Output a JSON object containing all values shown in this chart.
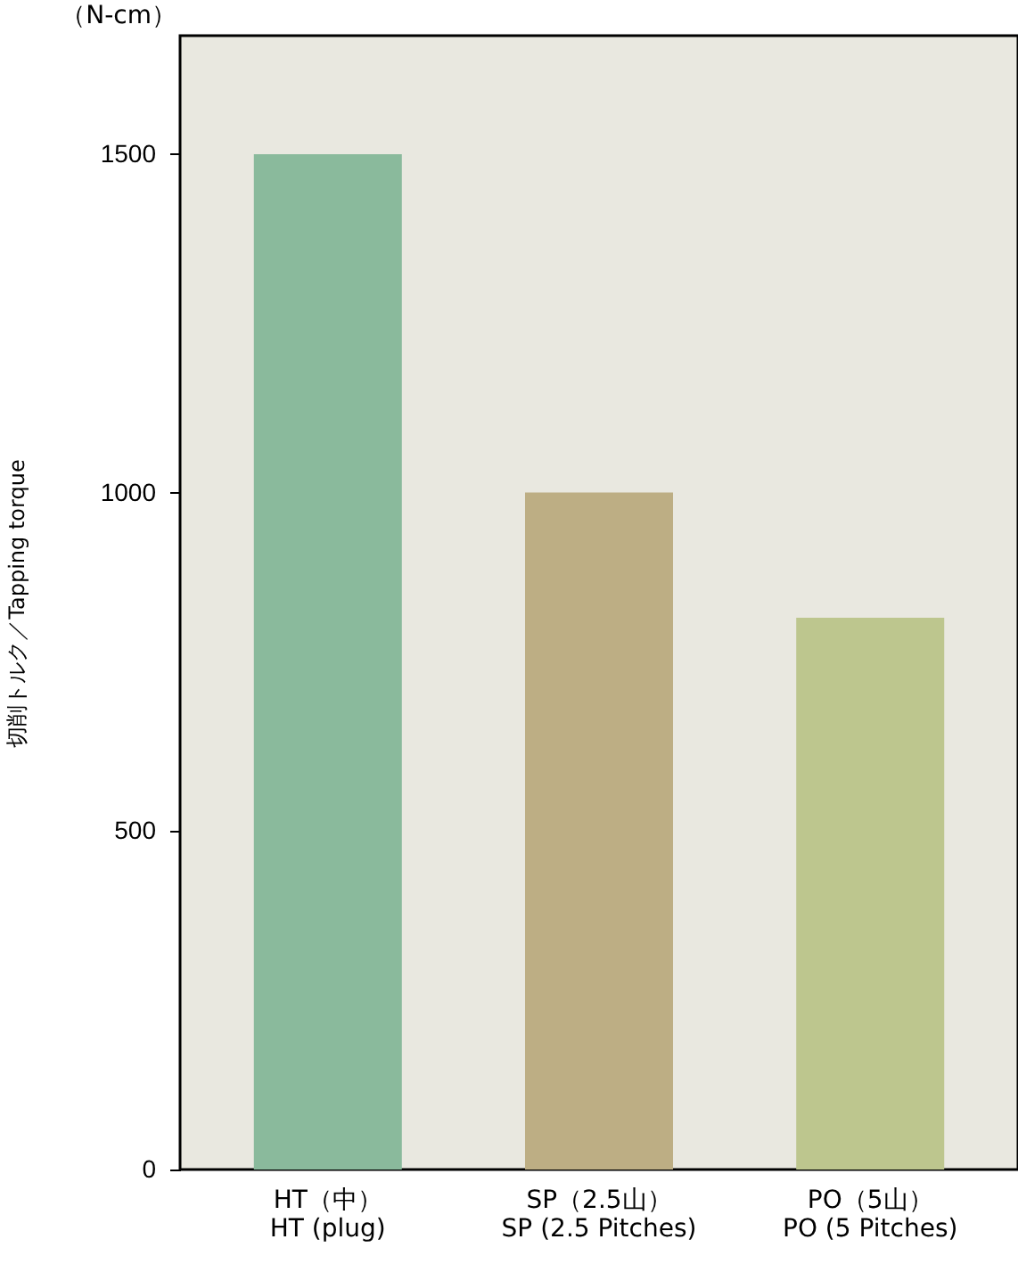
{
  "chart_data": {
    "type": "bar",
    "categories": [
      "HT（中）\nHT (plug)",
      "SP（2.5山）\nSP (2.5 Pitches)",
      "PO（5山）\nPO (5 Pitches)"
    ],
    "values": [
      1500,
      1000,
      815
    ],
    "colors": [
      "#8aba9c",
      "#bdae84",
      "#bdc68e"
    ],
    "ylabel": "切削トルク／Tapping torque",
    "annotations": [
      "（N-cm）"
    ],
    "ylim": [
      0,
      1675
    ],
    "yticks": [
      0,
      500,
      1000,
      1500
    ],
    "grid": false
  }
}
